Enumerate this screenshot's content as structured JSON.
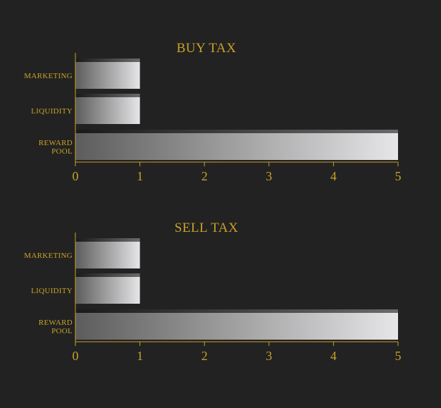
{
  "chart_data": [
    {
      "type": "bar",
      "orientation": "horizontal",
      "title": "BUY TAX",
      "categories": [
        [
          "MARKETING"
        ],
        [
          "LIQUIDITY"
        ],
        [
          "REWARD",
          "POOL"
        ]
      ],
      "values": [
        1,
        1,
        5
      ],
      "xlim": [
        0,
        5
      ],
      "xticks": [
        "0",
        "1",
        "2",
        "3",
        "4",
        "5"
      ],
      "grid": false,
      "legend": "none"
    },
    {
      "type": "bar",
      "orientation": "horizontal",
      "title": "SELL TAX",
      "categories": [
        [
          "MARKETING"
        ],
        [
          "LIQUIDITY"
        ],
        [
          "REWARD",
          "POOL"
        ]
      ],
      "values": [
        1,
        1,
        5
      ],
      "xlim": [
        0,
        5
      ],
      "xticks": [
        "0",
        "1",
        "2",
        "3",
        "4",
        "5"
      ],
      "grid": false,
      "legend": "none"
    }
  ],
  "colors": {
    "background": "#222222",
    "text": "#c9a227",
    "axis": "#c9a227",
    "bar_light": "#e6e6e8",
    "bar_dark": "#5c5c5c"
  }
}
